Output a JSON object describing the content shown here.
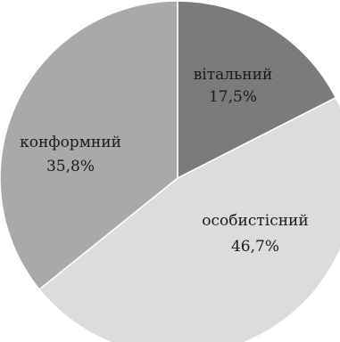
{
  "chart_data": {
    "type": "pie",
    "slices": [
      {
        "label": "вітальний",
        "value": 17.5,
        "value_label": "17,5%",
        "color": "#7b7b7b"
      },
      {
        "label": "особистісний",
        "value": 46.7,
        "value_label": "46,7%",
        "color": "#dcdcdc"
      },
      {
        "label": "конформний",
        "value": 35.8,
        "value_label": "35,8%",
        "color": "#a9a9a9"
      }
    ],
    "start_angle_deg": 0,
    "direction": "clockwise",
    "legend": "none"
  }
}
